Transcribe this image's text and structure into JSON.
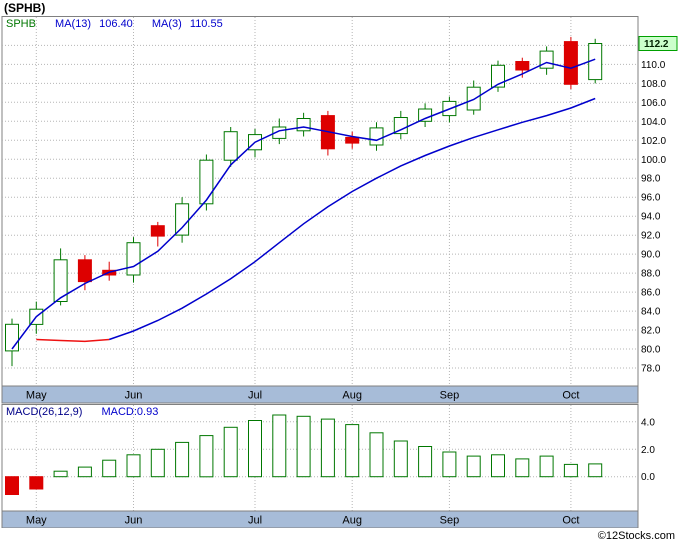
{
  "title": "(SPHB)",
  "footer": "©12Stocks.com",
  "colors": {
    "up": "#007700",
    "down": "#dd0000",
    "ma_blue": "#0000cc",
    "ma_red": "#ee1111",
    "grid": "#b5b5b5",
    "border": "#808080",
    "strip_bg": "#a7bcd8",
    "badge_bg": "#ccffcc",
    "badge_border": "#00a000",
    "legend_symbol": "#007700",
    "legend_ma": "#0000cc",
    "macd_label": "#000088",
    "macd_value": "#0000cc"
  },
  "main_chart": {
    "legend": {
      "symbol": "SPHB",
      "ma13_label": "MA(13)",
      "ma13_value": "106.40",
      "ma3_label": "MA(3)",
      "ma3_value": "110.55"
    },
    "price_badge": "112.2",
    "y_axis": {
      "min": 78,
      "max": 112,
      "step": 2
    }
  },
  "macd_chart": {
    "legend": {
      "label": "MACD(26,12,9)",
      "value": "MACD:0.93"
    },
    "y_ticks": [
      0,
      2,
      4
    ]
  },
  "months": [
    {
      "label": "May",
      "index": 1
    },
    {
      "label": "Jun",
      "index": 5
    },
    {
      "label": "Jul",
      "index": 10
    },
    {
      "label": "Aug",
      "index": 14
    },
    {
      "label": "Sep",
      "index": 18
    },
    {
      "label": "Oct",
      "index": 23
    }
  ],
  "chart_data": [
    {
      "type": "candlestick",
      "title": "SPHB weekly price with MA(13) and MA(3)",
      "ylim": [
        76.1,
        115.1
      ],
      "last_price": 112.2,
      "candles": [
        {
          "o": 79.8,
          "h": 83.2,
          "l": 78.2,
          "c": 82.6
        },
        {
          "o": 82.6,
          "h": 85.0,
          "l": 81.6,
          "c": 84.2
        },
        {
          "o": 85.0,
          "h": 90.6,
          "l": 84.6,
          "c": 89.4
        },
        {
          "o": 89.4,
          "h": 89.9,
          "l": 86.2,
          "c": 87.1
        },
        {
          "o": 88.3,
          "h": 89.2,
          "l": 87.2,
          "c": 87.8
        },
        {
          "o": 87.8,
          "h": 91.8,
          "l": 87.0,
          "c": 91.2
        },
        {
          "o": 93.0,
          "h": 93.4,
          "l": 90.8,
          "c": 91.9
        },
        {
          "o": 92.0,
          "h": 96.0,
          "l": 91.2,
          "c": 95.3
        },
        {
          "o": 95.3,
          "h": 100.5,
          "l": 94.6,
          "c": 99.9
        },
        {
          "o": 99.9,
          "h": 103.4,
          "l": 99.2,
          "c": 102.9
        },
        {
          "o": 101.0,
          "h": 103.2,
          "l": 100.2,
          "c": 102.6
        },
        {
          "o": 102.2,
          "h": 104.3,
          "l": 101.6,
          "c": 103.4
        },
        {
          "o": 103.0,
          "h": 104.9,
          "l": 102.4,
          "c": 104.3
        },
        {
          "o": 104.6,
          "h": 105.1,
          "l": 100.4,
          "c": 101.1
        },
        {
          "o": 102.3,
          "h": 102.9,
          "l": 101.1,
          "c": 101.7
        },
        {
          "o": 101.5,
          "h": 103.9,
          "l": 100.9,
          "c": 103.3
        },
        {
          "o": 102.7,
          "h": 105.1,
          "l": 102.1,
          "c": 104.4
        },
        {
          "o": 104.0,
          "h": 105.9,
          "l": 103.4,
          "c": 105.3
        },
        {
          "o": 104.6,
          "h": 106.6,
          "l": 103.9,
          "c": 106.1
        },
        {
          "o": 105.2,
          "h": 108.3,
          "l": 104.7,
          "c": 107.6
        },
        {
          "o": 107.6,
          "h": 110.4,
          "l": 107.1,
          "c": 109.9
        },
        {
          "o": 110.3,
          "h": 110.7,
          "l": 108.6,
          "c": 109.4
        },
        {
          "o": 109.6,
          "h": 111.9,
          "l": 108.9,
          "c": 111.4
        },
        {
          "o": 112.4,
          "h": 112.9,
          "l": 107.4,
          "c": 107.9
        },
        {
          "o": 108.4,
          "h": 112.7,
          "l": 108.0,
          "c": 112.2
        }
      ],
      "ma3": [
        80.0,
        83.4,
        85.4,
        86.9,
        88.1,
        88.7,
        90.3,
        92.8,
        95.7,
        99.4,
        101.8,
        103.0,
        103.4,
        102.9,
        102.4,
        102.0,
        103.1,
        104.3,
        105.3,
        106.3,
        107.9,
        109.0,
        110.2,
        109.6,
        110.55
      ],
      "ma13": [
        80.9,
        81.0,
        80.9,
        80.8,
        81.0,
        81.9,
        83.0,
        84.3,
        85.8,
        87.4,
        89.2,
        91.2,
        93.2,
        95.0,
        96.6,
        98.0,
        99.3,
        100.4,
        101.4,
        102.3,
        103.1,
        103.9,
        104.6,
        105.4,
        106.4
      ],
      "ma13_red_span": [
        1,
        4
      ]
    },
    {
      "type": "bar",
      "title": "MACD(26,12,9) histogram",
      "ylim": [
        -2.5,
        5.3
      ],
      "values": [
        -1.3,
        -0.9,
        0.4,
        0.7,
        1.2,
        1.6,
        2.0,
        2.5,
        3.0,
        3.6,
        4.1,
        4.5,
        4.4,
        4.2,
        3.8,
        3.2,
        2.6,
        2.2,
        1.8,
        1.5,
        1.6,
        1.3,
        1.5,
        0.9,
        0.93
      ]
    }
  ]
}
